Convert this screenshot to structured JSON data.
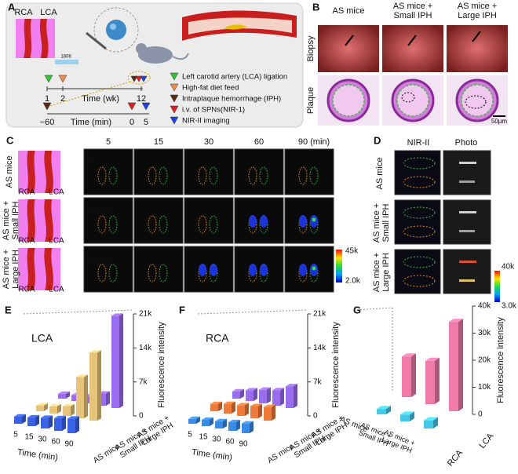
{
  "panel_a": {
    "label": "A",
    "vessel_labels": [
      "RCA",
      "LCA"
    ],
    "laser": "1808",
    "timeline_weeks": {
      "ticks": [
        "1",
        "2",
        "12"
      ],
      "label": "Time (wk)"
    },
    "timeline_minutes": {
      "ticks": [
        "−60",
        "0",
        "5"
      ],
      "label": "Time (min)"
    },
    "legend": [
      {
        "color": "#35c435",
        "text": "Left carotid artery (LCA) ligation"
      },
      {
        "color": "#f08a4b",
        "text": "High-fat diet feed"
      },
      {
        "color": "#5a2a16",
        "text": "Intraplaque hemorrhage (IPH)"
      },
      {
        "color": "#e02020",
        "text": "i.v. of SPNs(NIR-1)"
      },
      {
        "color": "#2040e0",
        "text": "NIR-II imaging"
      }
    ]
  },
  "panel_b": {
    "label": "B",
    "columns": [
      [
        "AS mice"
      ],
      [
        "AS mice +",
        "Small IPH"
      ],
      [
        "AS mice +",
        "Large IPH"
      ]
    ],
    "rows": [
      "Biopsy",
      "Plaque"
    ],
    "scale_bar": "50μm"
  },
  "panel_c": {
    "label": "C",
    "times": [
      "5",
      "15",
      "30",
      "60",
      "90 (min)"
    ],
    "rows": [
      [
        "AS mice"
      ],
      [
        "AS mice +",
        "Small IPH"
      ],
      [
        "AS mice +",
        "Large IPH"
      ]
    ],
    "vessel_labels": [
      "RCA",
      "LCA"
    ],
    "image_labels": [
      "RCA",
      "LCA"
    ],
    "colorbar": [
      "45k",
      "2.0k"
    ]
  },
  "panel_d": {
    "label": "D",
    "columns": [
      "NIR-II",
      "Photo"
    ],
    "rows": [
      [
        "AS mice"
      ],
      [
        "AS mice +",
        "Small IPH"
      ],
      [
        "AS mice +",
        "Large IPH"
      ]
    ],
    "image_labels": [
      "LCA",
      "RCA"
    ],
    "colorbar": [
      "40k",
      "3.0k"
    ]
  },
  "panel_e": {
    "type": "bar3d",
    "label": "E",
    "title": "LCA",
    "y_label": "Fluorescence intensity",
    "x_label": "Time (min)",
    "categories": [
      5,
      15,
      30,
      60,
      90
    ],
    "ylim": [
      0,
      21000
    ],
    "yticks": [
      {
        "value": 0,
        "label": "0"
      },
      {
        "value": 7000,
        "label": "7k"
      },
      {
        "value": 14000,
        "label": "14k"
      },
      {
        "value": 21000,
        "label": "21k"
      }
    ],
    "series": [
      {
        "name": [
          "AS mice"
        ],
        "color": "#3a62e8",
        "values": [
          1500,
          1800,
          2200,
          2600,
          3000
        ]
      },
      {
        "name": [
          "AS mice +",
          "Small IPH"
        ],
        "color": "#e8c47a",
        "values": [
          1200,
          1500,
          2000,
          8500,
          14000
        ]
      },
      {
        "name": [
          "AS mice +",
          "Large IPH"
        ],
        "color": "#9a6cf0",
        "values": [
          1000,
          1200,
          1500,
          2500,
          19000
        ]
      }
    ]
  },
  "panel_f": {
    "type": "bar3d",
    "label": "F",
    "title": "RCA",
    "y_label": "Fluorescence intensity",
    "x_label": "Time (min)",
    "categories": [
      5,
      15,
      30,
      60,
      90
    ],
    "ylim": [
      0,
      21000
    ],
    "yticks": [
      {
        "value": 0,
        "label": "0"
      },
      {
        "value": 7000,
        "label": "7k"
      },
      {
        "value": 14000,
        "label": "14k"
      },
      {
        "value": 21000,
        "label": "21k"
      }
    ],
    "series": [
      {
        "name": [
          "AS mice"
        ],
        "color": "#3a8ae8",
        "values": [
          1000,
          1300,
          1500,
          1800,
          2000
        ]
      },
      {
        "name": [
          "AS mice +",
          "Small IPH"
        ],
        "color": "#f07a3a",
        "values": [
          1500,
          2000,
          2200,
          2500,
          2800
        ]
      },
      {
        "name": [
          "AS mice +",
          "Large IPH"
        ],
        "color": "#9a6cf0",
        "values": [
          1500,
          2200,
          2800,
          3200,
          4500
        ]
      }
    ]
  },
  "panel_g": {
    "type": "bar3d",
    "label": "G",
    "y_label": "Fluorescence intensity",
    "categories": [
      [
        "AS mice"
      ],
      [
        "AS mice +",
        "Small IPH"
      ],
      [
        "AS mice +",
        "Large IPH"
      ]
    ],
    "ylim": [
      0,
      40000
    ],
    "yticks": [
      {
        "value": 0,
        "label": "0"
      },
      {
        "value": 10000,
        "label": "10k"
      },
      {
        "value": 20000,
        "label": "20k"
      },
      {
        "value": 30000,
        "label": "30k"
      },
      {
        "value": 40000,
        "label": "40k"
      }
    ],
    "series": [
      {
        "name": [
          "RCA"
        ],
        "color": "#45c8e8",
        "values": [
          2000,
          2500,
          3000
        ]
      },
      {
        "name": [
          "LCA"
        ],
        "color": "#f07aa8",
        "values": [
          15000,
          16000,
          33000
        ]
      }
    ]
  }
}
